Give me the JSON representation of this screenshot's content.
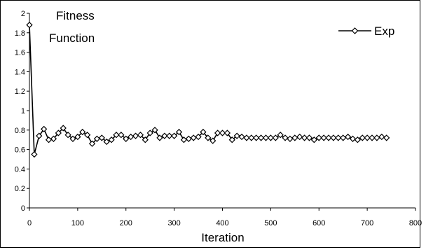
{
  "chart_data": {
    "type": "line",
    "title": "",
    "xlabel": "Iteration",
    "ylabel": "Fitness Function",
    "ylabel_lines": [
      "Fitness",
      "Function"
    ],
    "xlim": [
      0,
      800
    ],
    "ylim": [
      0,
      2
    ],
    "xticks": [
      0,
      100,
      200,
      300,
      400,
      500,
      600,
      700,
      800
    ],
    "yticks": [
      0,
      0.2,
      0.4,
      0.6,
      0.8,
      1,
      1.2,
      1.4,
      1.6,
      1.8,
      2
    ],
    "xtick_labels": [
      "0",
      "100",
      "200",
      "300",
      "400",
      "500",
      "600",
      "700",
      "800"
    ],
    "ytick_labels": [
      "0",
      "0.2",
      "0.4",
      "0.6",
      "0.8",
      "1",
      "1.2",
      "1.4",
      "1.6",
      "1.8",
      "2"
    ],
    "grid": false,
    "legend_position": "top-right",
    "marker": "diamond",
    "series": [
      {
        "name": "Exp",
        "color": "#000000",
        "x": [
          0,
          10,
          20,
          30,
          40,
          50,
          60,
          70,
          80,
          90,
          100,
          110,
          120,
          130,
          140,
          150,
          160,
          170,
          180,
          190,
          200,
          210,
          220,
          230,
          240,
          250,
          260,
          270,
          280,
          290,
          300,
          310,
          320,
          330,
          340,
          350,
          360,
          370,
          380,
          390,
          400,
          410,
          420,
          430,
          440,
          450,
          460,
          470,
          480,
          490,
          500,
          510,
          520,
          530,
          540,
          550,
          560,
          570,
          580,
          590,
          600,
          610,
          620,
          630,
          640,
          650,
          660,
          670,
          680,
          690,
          700,
          710,
          720,
          730,
          740
        ],
        "values": [
          1.88,
          0.55,
          0.74,
          0.81,
          0.7,
          0.71,
          0.77,
          0.82,
          0.75,
          0.71,
          0.73,
          0.78,
          0.75,
          0.66,
          0.71,
          0.72,
          0.68,
          0.7,
          0.75,
          0.75,
          0.71,
          0.73,
          0.74,
          0.75,
          0.7,
          0.77,
          0.8,
          0.72,
          0.74,
          0.74,
          0.74,
          0.78,
          0.7,
          0.71,
          0.72,
          0.73,
          0.78,
          0.72,
          0.69,
          0.77,
          0.77,
          0.77,
          0.7,
          0.74,
          0.73,
          0.72,
          0.72,
          0.72,
          0.72,
          0.72,
          0.72,
          0.72,
          0.75,
          0.72,
          0.71,
          0.72,
          0.73,
          0.72,
          0.72,
          0.7,
          0.72,
          0.72,
          0.72,
          0.72,
          0.72,
          0.72,
          0.73,
          0.71,
          0.7,
          0.72,
          0.72,
          0.72,
          0.72,
          0.73,
          0.72
        ]
      }
    ]
  }
}
